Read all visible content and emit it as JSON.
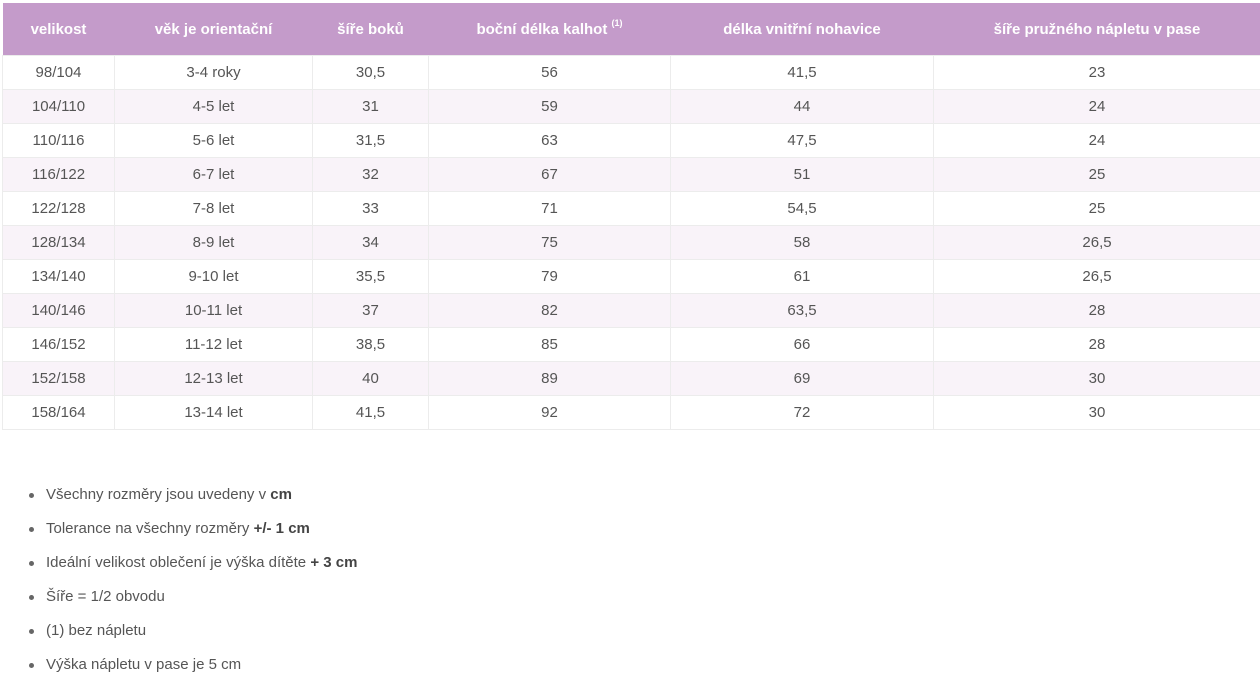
{
  "table": {
    "headers": [
      {
        "label": "velikost",
        "sup": ""
      },
      {
        "label": "věk je orientační",
        "sup": ""
      },
      {
        "label": "šíře boků",
        "sup": ""
      },
      {
        "label": "boční délka kalhot",
        "sup": "(1)"
      },
      {
        "label": "délka vnitřní nohavice",
        "sup": ""
      },
      {
        "label": "šíře pružného ná­pletu v pase",
        "sup": ""
      }
    ],
    "rows": [
      [
        "98/104",
        "3-4 roky",
        "30,5",
        "56",
        "41,5",
        "23"
      ],
      [
        "104/110",
        "4-5 let",
        "31",
        "59",
        "44",
        "24"
      ],
      [
        "110/116",
        "5-6 let",
        "31,5",
        "63",
        "47,5",
        "24"
      ],
      [
        "116/122",
        "6-7 let",
        "32",
        "67",
        "51",
        "25"
      ],
      [
        "122/128",
        "7-8 let",
        "33",
        "71",
        "54,5",
        "25"
      ],
      [
        "128/134",
        "8-9 let",
        "34",
        "75",
        "58",
        "26,5"
      ],
      [
        "134/140",
        "9-10 let",
        "35,5",
        "79",
        "61",
        "26,5"
      ],
      [
        "140/146",
        "10-11 let",
        "37",
        "82",
        "63,5",
        "28"
      ],
      [
        "146/152",
        "11-12 let",
        "38,5",
        "85",
        "66",
        "28"
      ],
      [
        "152/158",
        "12-13 let",
        "40",
        "89",
        "69",
        "30"
      ],
      [
        "158/164",
        "13-14 let",
        "41,5",
        "92",
        "72",
        "30"
      ]
    ]
  },
  "notes": [
    {
      "text": "Všechny rozměry jsou uvedeny v ",
      "bold": "cm"
    },
    {
      "text": "Tolerance na všechny rozměry ",
      "bold": "+/- 1 cm"
    },
    {
      "text": "Ideální velikost oblečení je výška dítěte ",
      "bold": "+ 3 cm"
    },
    {
      "text": "Šíře = 1/2 obvodu",
      "bold": ""
    },
    {
      "text": "(1) bez nápletu",
      "bold": ""
    },
    {
      "text": "Výška nápletu v pase je 5 cm",
      "bold": ""
    }
  ],
  "colors": {
    "header_bg": "#c49bca",
    "header_text": "#ffffff",
    "stripe_bg": "#f9f3f9",
    "border": "#ececec",
    "text": "#555555"
  }
}
